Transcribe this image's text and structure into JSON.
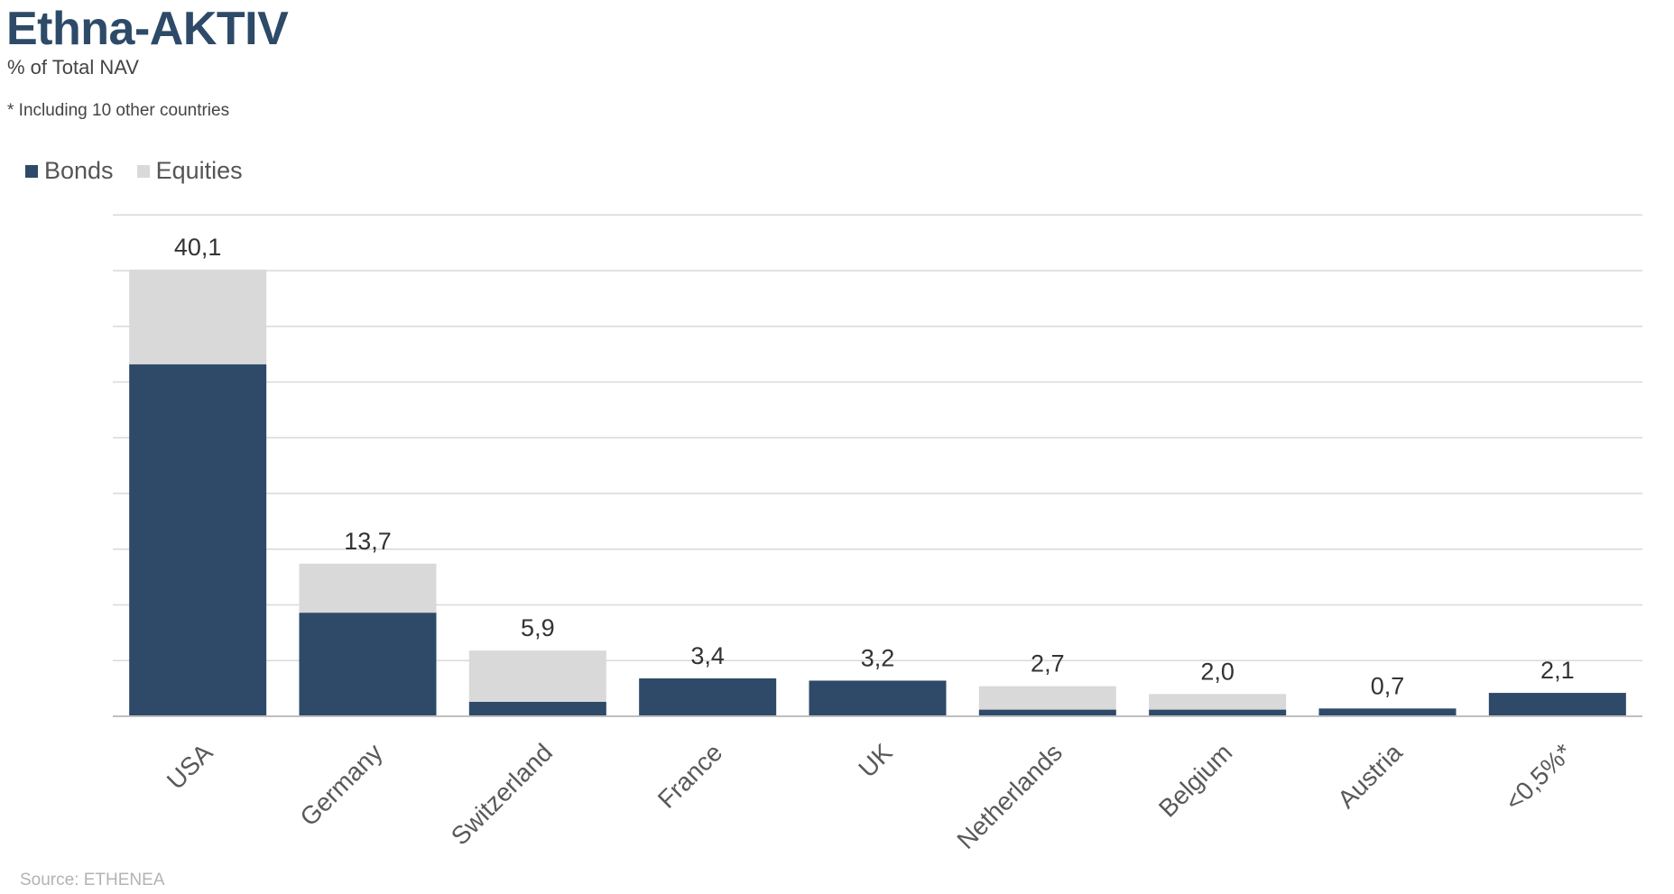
{
  "title": "Ethna-AKTIV",
  "subtitle": "% of Total NAV",
  "footnote": "* Including 10 other countries",
  "source": "Source: ETHENEA",
  "colors": {
    "bonds": "#2e4a68",
    "equities": "#d9d9d9",
    "grid": "#d9d9d9",
    "axis": "#bfbfbf",
    "text": "#333333",
    "tick_text": "#595959"
  },
  "chart_data": {
    "type": "bar",
    "stacked": true,
    "categories": [
      "USA",
      "Germany",
      "Switzerland",
      "France",
      "UK",
      "Netherlands",
      "Belgium",
      "Austria",
      "<0,5%*"
    ],
    "series": [
      {
        "name": "Bonds",
        "values": [
          31.6,
          9.3,
          1.3,
          3.4,
          3.2,
          0.6,
          0.6,
          0.7,
          2.1
        ]
      },
      {
        "name": "Equities",
        "values": [
          8.5,
          4.4,
          4.6,
          0.0,
          0.0,
          2.1,
          1.4,
          0.0,
          0.0
        ]
      }
    ],
    "totals": [
      "40,1",
      "13,7",
      "5,9",
      "3,4",
      "3,2",
      "2,7",
      "2,0",
      "0,7",
      "2,1"
    ],
    "ylim": [
      0,
      45
    ],
    "grid": true,
    "legend": "top-left",
    "xlabel": "",
    "ylabel": ""
  }
}
